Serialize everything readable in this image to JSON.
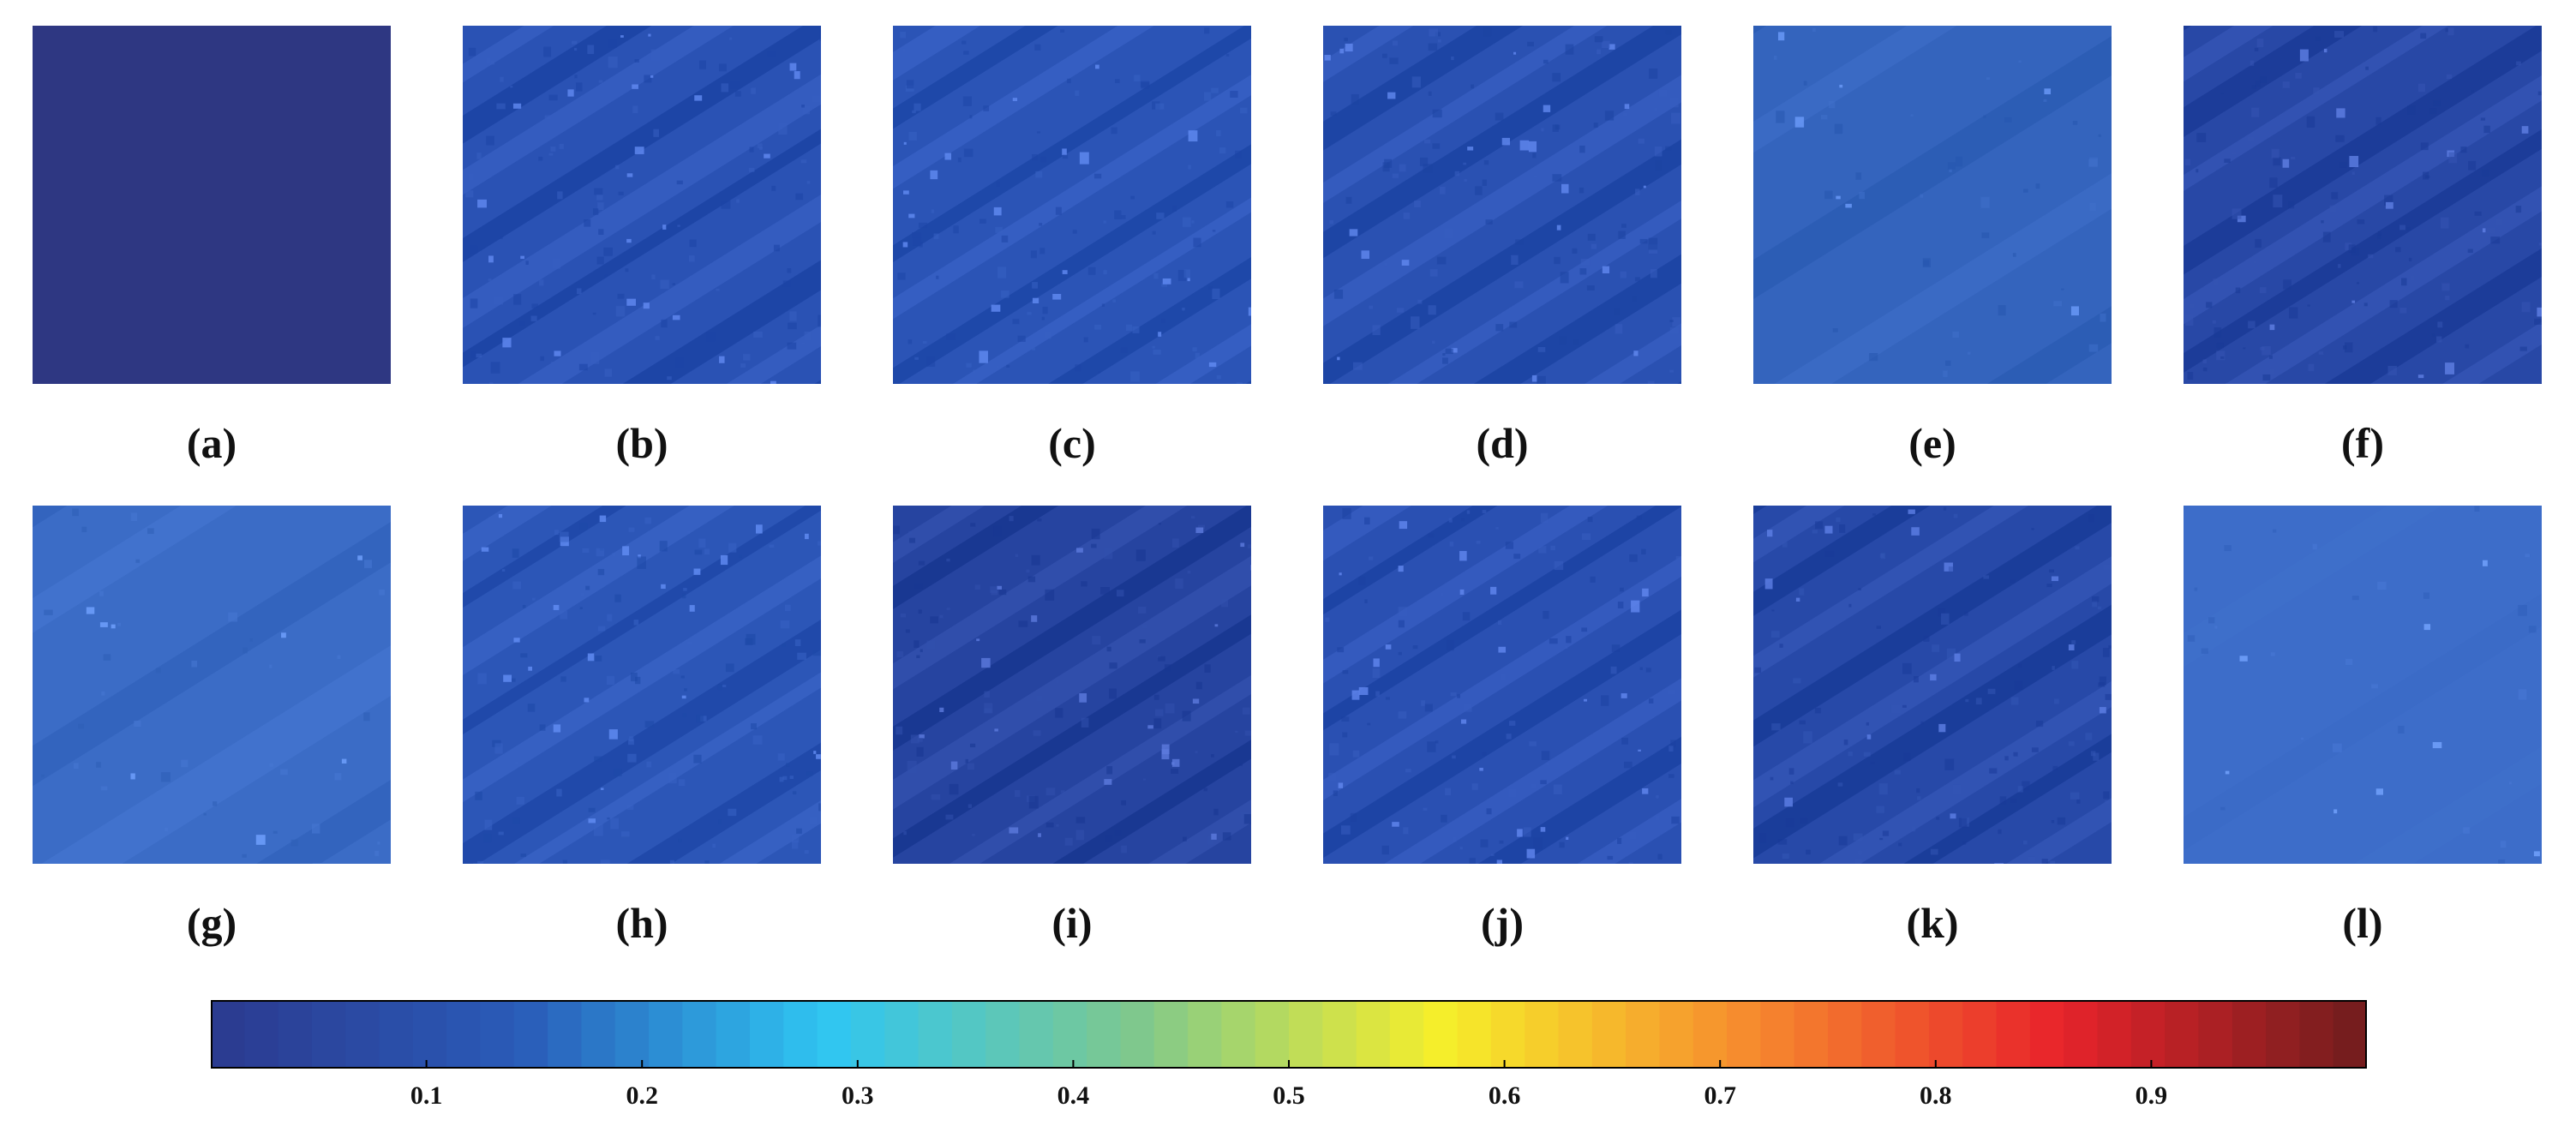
{
  "panels": [
    {
      "id": "a",
      "label": "(a)",
      "base": "#2e3782",
      "style": "flat"
    },
    {
      "id": "b",
      "label": "(b)",
      "base": "#2a52b4",
      "style": "streets"
    },
    {
      "id": "c",
      "label": "(c)",
      "base": "#2b54b6",
      "style": "streets"
    },
    {
      "id": "d",
      "label": "(d)",
      "base": "#2a51b2",
      "style": "streets"
    },
    {
      "id": "e",
      "label": "(e)",
      "base": "#3464bd",
      "style": "smooth"
    },
    {
      "id": "f",
      "label": "(f)",
      "base": "#2848a6",
      "style": "streets"
    },
    {
      "id": "g",
      "label": "(g)",
      "base": "#3b6cc6",
      "style": "smooth"
    },
    {
      "id": "h",
      "label": "(h)",
      "base": "#2c56b7",
      "style": "streets"
    },
    {
      "id": "i",
      "label": "(i)",
      "base": "#2644a0",
      "style": "streets"
    },
    {
      "id": "j",
      "label": "(j)",
      "base": "#2a50b2",
      "style": "streets"
    },
    {
      "id": "k",
      "label": "(k)",
      "base": "#2749a8",
      "style": "streets"
    },
    {
      "id": "l",
      "label": "(l)",
      "base": "#3d6dc9",
      "style": "faint"
    }
  ],
  "colorbar": {
    "colormap": "jet",
    "min": 0,
    "max": 1,
    "ticks": [
      "0.1",
      "0.2",
      "0.3",
      "0.4",
      "0.5",
      "0.6",
      "0.7",
      "0.8",
      "0.9"
    ],
    "stops": [
      "#2b3a8f",
      "#2a5bb8",
      "#2fc6f2",
      "#7ec88e",
      "#f6ee2a",
      "#f68a2e",
      "#e8232b",
      "#6f1d1d"
    ]
  }
}
